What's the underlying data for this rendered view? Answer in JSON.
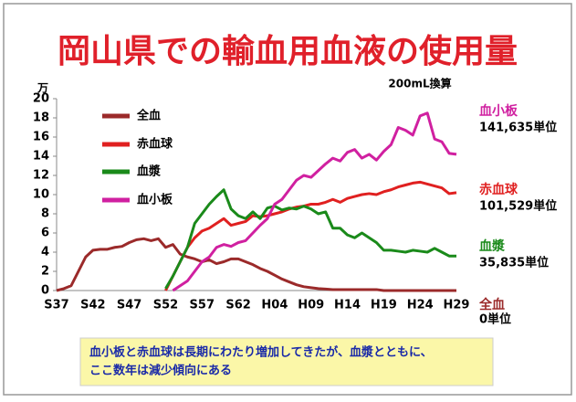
{
  "chart_data": {
    "type": "line",
    "title": "岡山県での輸血用血液の使用量",
    "y_unit": "万",
    "note": "200mL換算",
    "categories": [
      "S37",
      null,
      null,
      null,
      null,
      "S42",
      null,
      null,
      null,
      null,
      "S47",
      null,
      null,
      null,
      null,
      "S52",
      null,
      null,
      null,
      null,
      "S57",
      null,
      null,
      null,
      null,
      "S62",
      null,
      null,
      null,
      null,
      "H04",
      null,
      null,
      null,
      null,
      "H09",
      null,
      null,
      null,
      null,
      "H14",
      null,
      null,
      null,
      null,
      "H19",
      null,
      null,
      null,
      null,
      "H24",
      null,
      null,
      null,
      null,
      "H29"
    ],
    "ylim": [
      0,
      20
    ],
    "yticks": [
      0,
      2,
      4,
      6,
      8,
      10,
      12,
      14,
      16,
      18,
      20
    ],
    "grid": false,
    "series": [
      {
        "name": "全血",
        "color": "#9b2a2a",
        "total_label": "0単位",
        "values": [
          0,
          0.2,
          0.5,
          2.0,
          3.5,
          4.2,
          4.3,
          4.3,
          4.5,
          4.6,
          5.0,
          5.3,
          5.4,
          5.2,
          5.4,
          4.5,
          4.8,
          3.8,
          3.5,
          3.3,
          3.0,
          3.2,
          2.8,
          3.0,
          3.3,
          3.3,
          3.0,
          2.7,
          2.3,
          2.0,
          1.6,
          1.2,
          0.9,
          0.6,
          0.4,
          0.3,
          0.2,
          0.15,
          0.1,
          0.1,
          0.1,
          0.1,
          0.1,
          0.1,
          0.1,
          0,
          0,
          0,
          0,
          0,
          0,
          0,
          0,
          0,
          0,
          0
        ]
      },
      {
        "name": "赤血球",
        "color": "#e02020",
        "total_label": "101,529単位",
        "values": [
          null,
          null,
          null,
          null,
          null,
          null,
          null,
          null,
          null,
          null,
          null,
          null,
          null,
          null,
          null,
          0,
          1.5,
          3,
          4.5,
          5.5,
          6.2,
          6.5,
          7,
          7.5,
          6.8,
          7.0,
          7.2,
          7.8,
          7.7,
          7.8,
          8.0,
          8.2,
          8.5,
          8.7,
          8.8,
          9.0,
          9.0,
          9.2,
          9.5,
          9.2,
          9.6,
          9.8,
          10.0,
          10.1,
          10.0,
          10.3,
          10.5,
          10.8,
          11.0,
          11.2,
          11.3,
          11.1,
          10.9,
          10.7,
          10.1,
          10.2
        ]
      },
      {
        "name": "血漿",
        "color": "#1a8a1a",
        "total_label": "35,835単位",
        "values": [
          null,
          null,
          null,
          null,
          null,
          null,
          null,
          null,
          null,
          null,
          null,
          null,
          null,
          null,
          null,
          0.2,
          1.5,
          3,
          4.5,
          7,
          8,
          9,
          9.8,
          10.5,
          8.5,
          7.8,
          7.5,
          8.2,
          7.5,
          8.6,
          8.8,
          8.4,
          8.6,
          8.5,
          8.8,
          8.5,
          8.0,
          8.2,
          6.5,
          6.5,
          5.8,
          5.5,
          6.0,
          5.5,
          5.0,
          4.2,
          4.2,
          4.1,
          4.0,
          4.2,
          4.1,
          4.0,
          4.4,
          4.0,
          3.6,
          3.6
        ]
      },
      {
        "name": "血小板",
        "color": "#d020a0",
        "total_label": "141,635単位",
        "values": [
          null,
          null,
          null,
          null,
          null,
          null,
          null,
          null,
          null,
          null,
          null,
          null,
          null,
          null,
          null,
          null,
          0,
          0.5,
          1,
          2,
          3,
          3.5,
          4.5,
          4.8,
          4.6,
          5,
          5.2,
          6,
          6.8,
          7.5,
          9,
          9.5,
          10.5,
          11.5,
          12,
          11.8,
          12.5,
          13.2,
          13.8,
          13.5,
          14.4,
          14.7,
          13.8,
          14.2,
          13.6,
          14.5,
          15.2,
          17,
          16.7,
          16.2,
          18.2,
          18.5,
          15.8,
          15.5,
          14.3,
          14.2
        ]
      }
    ],
    "caption": [
      "血小板と赤血球は長期にわたり増加してきたが、血漿とともに、",
      "ここ数年は減少傾向にある"
    ]
  }
}
